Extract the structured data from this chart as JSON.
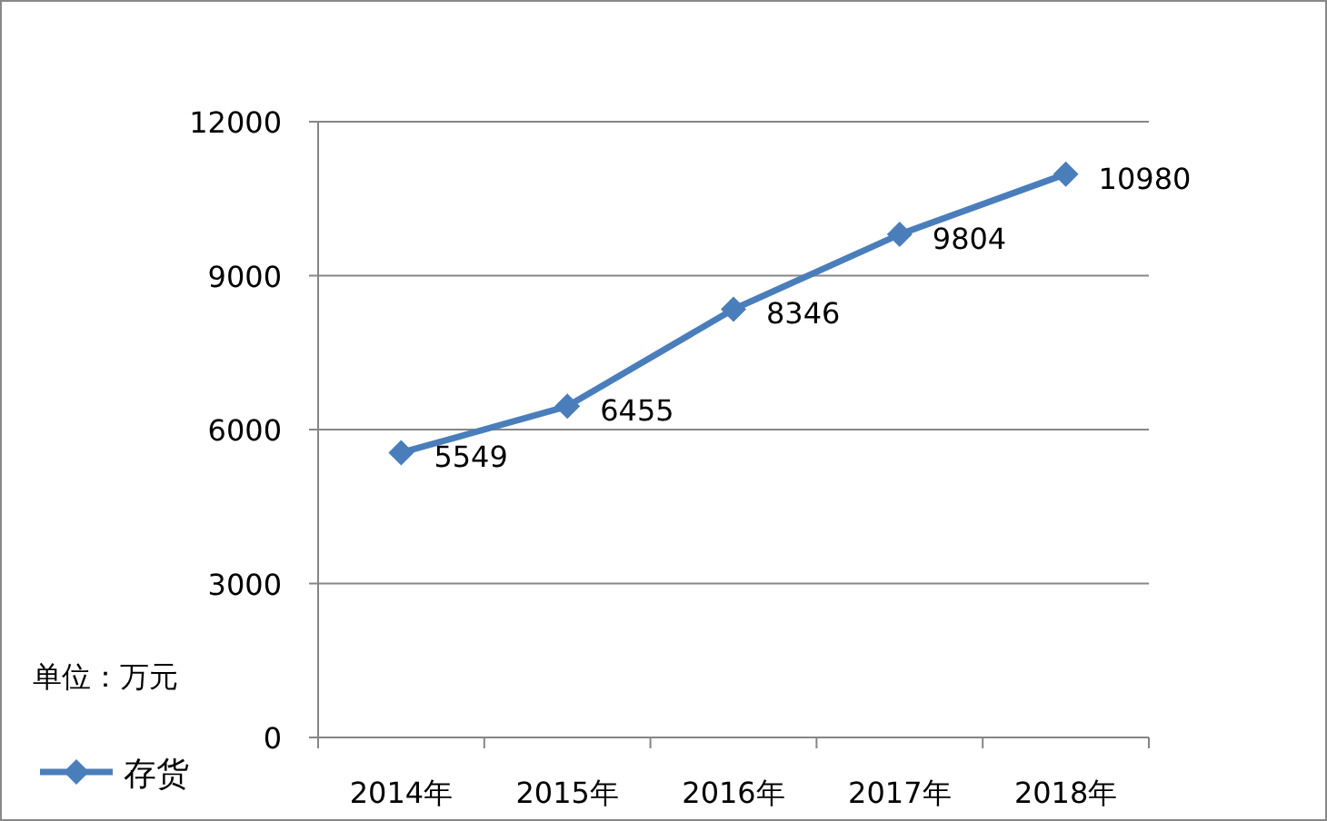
{
  "chart_data": {
    "type": "line",
    "categories": [
      "2014年",
      "2015年",
      "2016年",
      "2017年",
      "2018年"
    ],
    "series": [
      {
        "name": "存货",
        "color": "#4a7ebb",
        "values": [
          5549,
          6455,
          8346,
          9804,
          10980
        ]
      }
    ],
    "ylim": [
      0,
      12000
    ],
    "yticks": [
      0,
      3000,
      6000,
      9000,
      12000
    ],
    "grid": "y",
    "legend": "bottom left",
    "marker": "diamond",
    "line_style": "solid",
    "data_labels": true,
    "annotations": [
      "单位：万元"
    ]
  }
}
